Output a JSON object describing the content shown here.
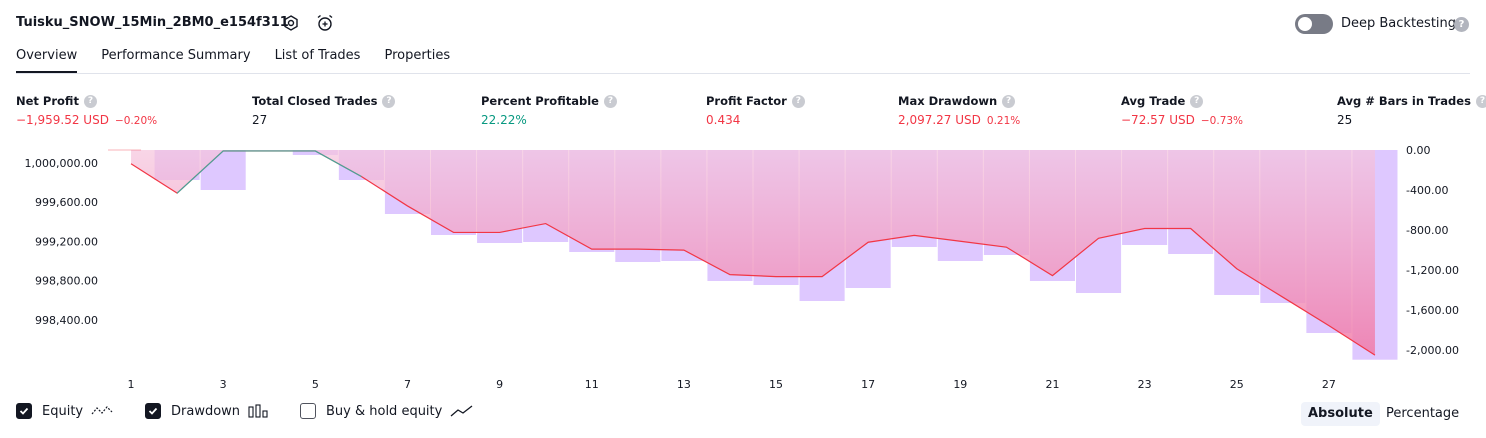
{
  "header": {
    "strategy_name": "Tuisku_SNOW_15Min_2BM0_e154f311",
    "deep_backtesting_label": "Deep Backtesting",
    "deep_backtesting_enabled": false,
    "help_glyph": "?",
    "icons": [
      "settings-icon",
      "alarm-add-icon",
      "help-icon"
    ]
  },
  "tabs": [
    {
      "label": "Overview",
      "active": true
    },
    {
      "label": "Performance Summary",
      "active": false
    },
    {
      "label": "List of Trades",
      "active": false
    },
    {
      "label": "Properties",
      "active": false
    }
  ],
  "metrics": [
    {
      "label": "Net Profit",
      "value": "−1,959.52 USD",
      "pct": "−0.20%",
      "color": "#f23645"
    },
    {
      "label": "Total Closed Trades",
      "value": "27",
      "pct": "",
      "color": "#131722"
    },
    {
      "label": "Percent Profitable",
      "value": "22.22%",
      "pct": "",
      "color": "#089981"
    },
    {
      "label": "Profit Factor",
      "value": "0.434",
      "pct": "",
      "color": "#f23645"
    },
    {
      "label": "Max Drawdown",
      "value": "2,097.27 USD",
      "pct": "0.21%",
      "color": "#f23645"
    },
    {
      "label": "Avg Trade",
      "value": "−72.57 USD",
      "pct": "−0.73%",
      "color": "#f23645"
    },
    {
      "label": "Avg # Bars in Trades",
      "value": "25",
      "pct": "",
      "color": "#131722"
    }
  ],
  "chart_data": {
    "type": "line",
    "x_ticks": [
      "1",
      "3",
      "5",
      "7",
      "9",
      "11",
      "13",
      "15",
      "17",
      "19",
      "21",
      "23",
      "25",
      "27"
    ],
    "equity": {
      "x": [
        1,
        2,
        3,
        4,
        5,
        6,
        7,
        8,
        9,
        10,
        11,
        12,
        13,
        14,
        15,
        16,
        17,
        18,
        19,
        20,
        21,
        22,
        23,
        24,
        25,
        26,
        27,
        28
      ],
      "values": [
        999990,
        999690,
        1000120,
        1000120,
        1000120,
        999860,
        999560,
        999290,
        999290,
        999380,
        999120,
        999120,
        999110,
        998860,
        998840,
        998840,
        999190,
        999260,
        999200,
        999140,
        998850,
        999230,
        999330,
        999330,
        998920,
        998630,
        998340,
        998040
      ]
    },
    "drawdown": {
      "x": [
        2,
        3,
        4,
        5,
        6,
        7,
        8,
        9,
        10,
        11,
        12,
        13,
        14,
        15,
        16,
        17,
        18,
        19,
        20,
        21,
        22,
        23,
        24,
        25,
        26,
        27,
        28
      ],
      "values": [
        -300,
        -400,
        0,
        -50,
        -300,
        -640,
        -850,
        -930,
        -920,
        -1020,
        -1120,
        -1110,
        -1310,
        -1350,
        -1510,
        -1380,
        -970,
        -1110,
        -1050,
        -1310,
        -1430,
        -950,
        -1040,
        -1450,
        -1530,
        -1830,
        -2097
      ]
    },
    "left_axis": {
      "ticks": [
        "1,000,000.00",
        "999,600.00",
        "999,200.00",
        "998,800.00",
        "998,400.00"
      ],
      "range": [
        997990,
        1000130
      ]
    },
    "right_axis": {
      "ticks": [
        "0.00",
        "-400.00",
        "-800.00",
        "-1,200.00",
        "-1,600.00",
        "-2,000.00"
      ],
      "range": [
        -2100,
        0
      ]
    },
    "colors": {
      "equity_line": "#f23645",
      "equity_fill": "#f7a8c4",
      "equity_fill_positive": "#a8e6d8",
      "drawdown_bar": "#d1b3ff"
    }
  },
  "legend": {
    "equity": {
      "label": "Equity",
      "checked": true
    },
    "drawdown": {
      "label": "Drawdown",
      "checked": true
    },
    "buy_hold": {
      "label": "Buy & hold equity",
      "checked": false
    },
    "modes": [
      {
        "label": "Absolute",
        "active": true
      },
      {
        "label": "Percentage",
        "active": false
      }
    ]
  }
}
